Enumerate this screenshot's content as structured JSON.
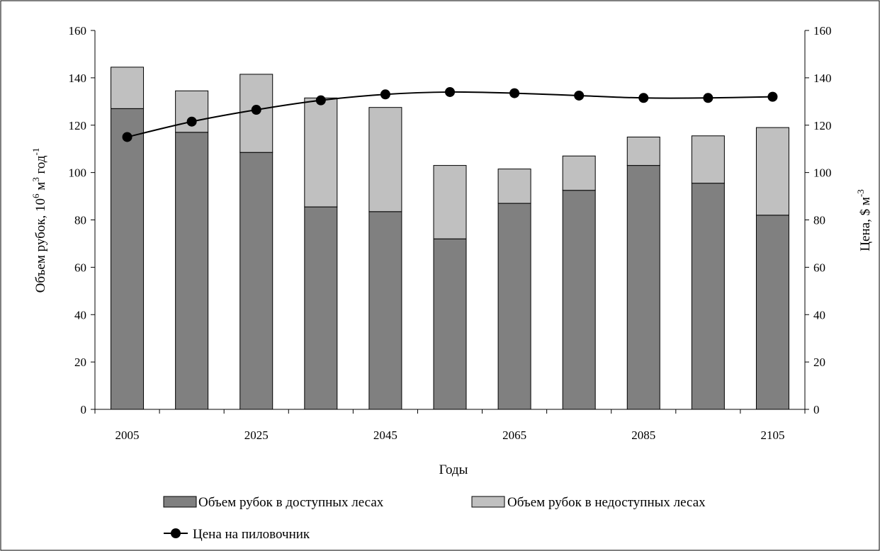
{
  "chart_data": {
    "type": "bar",
    "stacked": true,
    "x": [
      2005,
      2015,
      2025,
      2035,
      2045,
      2055,
      2065,
      2075,
      2085,
      2095,
      2105
    ],
    "x_tick_labels": [
      "2005",
      "2025",
      "2045",
      "2065",
      "2085",
      "2105"
    ],
    "xlabel": "Годы",
    "ylabel": {
      "prefix": "Объем рубок, 10",
      "sup1": "6",
      "mid": " м",
      "sup2": "3",
      "suffix": " год",
      "sup3": "-1"
    },
    "y2label": {
      "prefix": "Цена, $ м",
      "sup": "-3"
    },
    "ylim": [
      0,
      160
    ],
    "y2lim": [
      0,
      160
    ],
    "y_ticks": [
      0,
      20,
      40,
      60,
      80,
      100,
      120,
      140,
      160
    ],
    "y2_ticks": [
      0,
      20,
      40,
      60,
      80,
      100,
      120,
      140,
      160
    ],
    "grid": false,
    "legend_position": "bottom",
    "series": [
      {
        "name": "Объем рубок в доступных лесах",
        "kind": "bar",
        "axis": "left",
        "color": "#808080",
        "values": [
          127,
          117,
          108.5,
          85.5,
          83.5,
          72,
          87,
          92.5,
          103,
          95.5,
          82
        ]
      },
      {
        "name": "Объем рубок в недоступных лесах",
        "kind": "bar",
        "axis": "left",
        "color": "#c0c0c0",
        "values": [
          17.5,
          17.5,
          33,
          46,
          44,
          31,
          14.5,
          14.5,
          12,
          20,
          37
        ]
      },
      {
        "name": "Цена на пиловочник",
        "kind": "line",
        "axis": "right",
        "color": "#000000",
        "values": [
          115,
          121.5,
          126.5,
          130.5,
          133,
          134,
          133.5,
          132.5,
          131.5,
          131.5,
          132
        ]
      }
    ]
  }
}
